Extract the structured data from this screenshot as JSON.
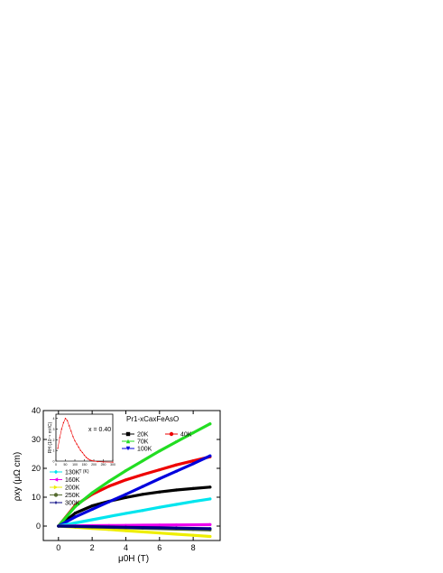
{
  "chart_data": {
    "type": "line",
    "xlabel": "μ0H (T)",
    "ylabel": "ρxy (μΩ cm)",
    "xlim": [
      -0.9,
      9.6
    ],
    "ylim": [
      -5,
      40
    ],
    "xticks": [
      "0",
      "2",
      "4",
      "6",
      "8"
    ],
    "yticks": [
      "-10",
      "0",
      "10",
      "20",
      "30",
      "40"
    ],
    "compound": "Pr1-xCaxFeAsO",
    "series": [
      {
        "name": "20K",
        "color": "#000000",
        "marker": "square",
        "x": [
          0,
          1,
          2,
          3,
          4,
          5,
          6,
          7,
          8,
          9
        ],
        "values": [
          0,
          4.5,
          7,
          8.6,
          9.9,
          11,
          11.8,
          12.5,
          13,
          13.5
        ]
      },
      {
        "name": "40K",
        "color": "#ee0000",
        "marker": "circle",
        "x": [
          0,
          1,
          2,
          3,
          4,
          5,
          6,
          7,
          8,
          9
        ],
        "values": [
          0,
          7.2,
          11,
          13.8,
          16,
          17.8,
          19.5,
          21.2,
          22.6,
          24
        ]
      },
      {
        "name": "70K",
        "color": "#22dd22",
        "marker": "triangle-up",
        "x": [
          0,
          1,
          2,
          3,
          4,
          5,
          6,
          7,
          8,
          9
        ],
        "values": [
          0,
          6.8,
          11.5,
          15.5,
          19.2,
          22.6,
          26,
          29.2,
          32.3,
          35.4
        ]
      },
      {
        "name": "100K",
        "color": "#0000dd",
        "marker": "triangle-down",
        "x": [
          0,
          1,
          2,
          3,
          4,
          5,
          6,
          7,
          8,
          9
        ],
        "values": [
          0,
          3.2,
          5.8,
          8.4,
          11,
          13.7,
          16.4,
          19,
          21.6,
          24.3
        ]
      },
      {
        "name": "130K",
        "color": "#00e5ee",
        "marker": "diamond",
        "x": [
          0,
          1,
          2,
          3,
          4,
          5,
          6,
          7,
          8,
          9
        ],
        "values": [
          0,
          1.1,
          2.2,
          3.3,
          4.4,
          5.4,
          6.5,
          7.5,
          8.5,
          9.4
        ]
      },
      {
        "name": "160K",
        "color": "#ee00ee",
        "marker": "triangle-left",
        "x": [
          0,
          1,
          2,
          3,
          4,
          5,
          6,
          7,
          8,
          9
        ],
        "values": [
          0,
          0.1,
          0.15,
          0.2,
          0.25,
          0.3,
          0.35,
          0.4,
          0.45,
          0.5
        ]
      },
      {
        "name": "200K",
        "color": "#eeee00",
        "marker": "triangle-right",
        "x": [
          0,
          1,
          2,
          3,
          4,
          5,
          6,
          7,
          8,
          9
        ],
        "values": [
          0,
          -0.4,
          -0.8,
          -1.2,
          -1.6,
          -2,
          -2.4,
          -2.8,
          -3.2,
          -3.6
        ]
      },
      {
        "name": "250K",
        "color": "#556b2f",
        "marker": "hexagon",
        "x": [
          0,
          1,
          2,
          3,
          4,
          5,
          6,
          7,
          8,
          9
        ],
        "values": [
          0,
          -0.15,
          -0.3,
          -0.45,
          -0.6,
          -0.75,
          -0.9,
          -1.05,
          -1.2,
          -1.35
        ]
      },
      {
        "name": "300K",
        "color": "#000080",
        "marker": "star",
        "x": [
          0,
          1,
          2,
          3,
          4,
          5,
          6,
          7,
          8,
          9
        ],
        "values": [
          0,
          -0.1,
          -0.2,
          -0.3,
          -0.4,
          -0.5,
          -0.6,
          -0.7,
          -0.8,
          -0.9
        ]
      }
    ],
    "inset": {
      "annotation": "x = 0.40",
      "xlabel": "T (K)",
      "ylabel": "RH (10⁻⁹ m³/C)",
      "xlim": [
        0,
        300
      ],
      "ylim": [
        0,
        4.4
      ],
      "xticks": [
        "0",
        "50",
        "100",
        "150",
        "200",
        "250",
        "300"
      ],
      "yticks": [
        "0",
        "1",
        "2",
        "3",
        "4"
      ],
      "color": "#ee0000",
      "x": [
        10,
        20,
        30,
        40,
        50,
        60,
        70,
        80,
        90,
        100,
        110,
        120,
        130,
        140,
        150,
        160,
        170,
        180,
        190,
        200,
        220,
        250,
        300
      ],
      "values": [
        1.2,
        2.2,
        3.0,
        3.6,
        4.0,
        3.8,
        3.3,
        2.8,
        2.3,
        1.9,
        1.6,
        1.3,
        1.0,
        0.8,
        0.55,
        0.35,
        0.2,
        0.1,
        0.05,
        0.0,
        -0.05,
        -0.08,
        -0.1
      ]
    },
    "legend_placement": "right"
  }
}
